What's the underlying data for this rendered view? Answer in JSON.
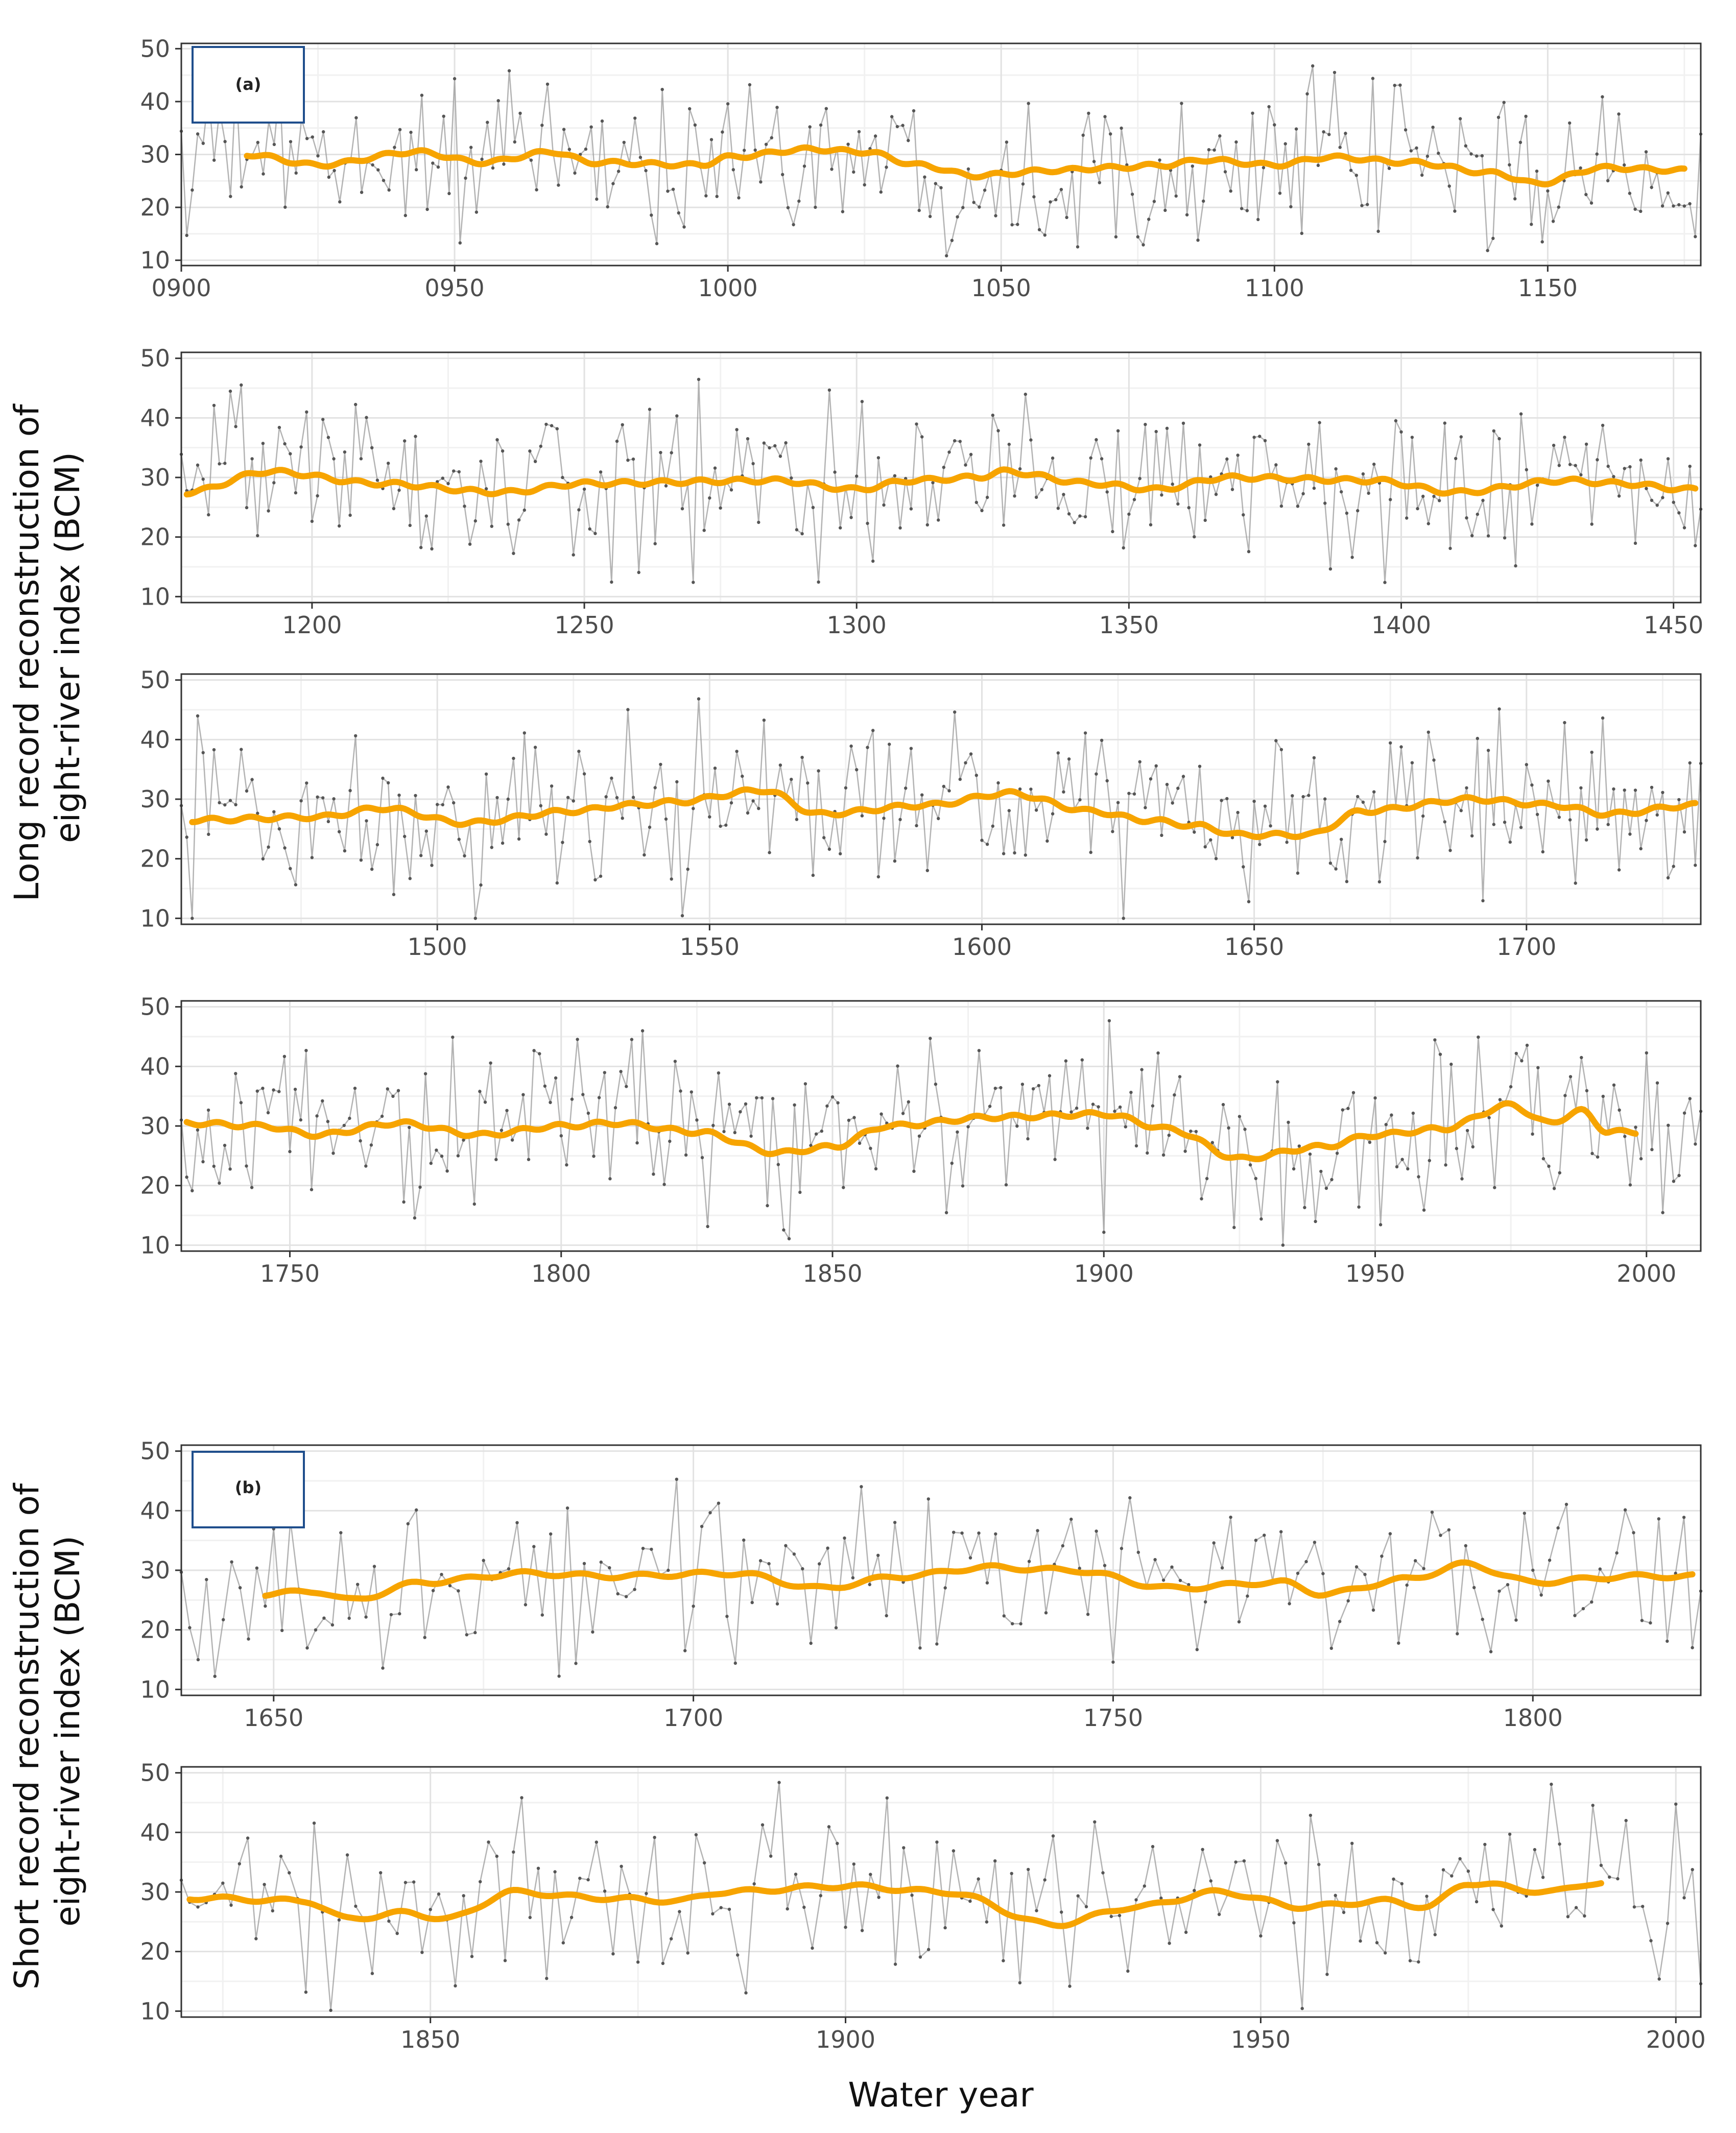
{
  "colors": {
    "raw": "#9a9a9a",
    "smooth": "#f7a400",
    "border": "#333333",
    "grid_major": "#e2e2e2",
    "grid_minor": "#f1f1f1",
    "label_box": "#1f4e8c"
  },
  "labels": {
    "ylabel_a": [
      "Long record reconstruction of",
      "eight-river index (BCM)"
    ],
    "ylabel_b": [
      "Short record reconstruction of",
      "eight-river index (BCM)"
    ],
    "xlabel": "Water year"
  },
  "chart_data": [
    {
      "id": "a1",
      "type": "line",
      "panel_label": "(a)",
      "xlim": [
        900,
        1178
      ],
      "ylim": [
        9,
        51
      ],
      "xticks": [
        900,
        950,
        1000,
        1050,
        1100,
        1150
      ],
      "tick_labels": [
        "0900",
        "0950",
        "1000",
        "1050",
        "1100",
        "1150"
      ],
      "yticks": [
        10,
        20,
        30,
        40,
        50
      ],
      "smooth_range": [
        912,
        1175
      ],
      "smooth_knots": [
        [
          912,
          30
        ],
        [
          925,
          28
        ],
        [
          943,
          30.5
        ],
        [
          955,
          28.5
        ],
        [
          968,
          30.5
        ],
        [
          975,
          28.5
        ],
        [
          995,
          28
        ],
        [
          1000,
          29.5
        ],
        [
          1015,
          31
        ],
        [
          1025,
          30.5
        ],
        [
          1035,
          28
        ],
        [
          1045,
          26
        ],
        [
          1060,
          27
        ],
        [
          1070,
          27.5
        ],
        [
          1080,
          28
        ],
        [
          1087,
          29
        ],
        [
          1100,
          28
        ],
        [
          1110,
          29.5
        ],
        [
          1125,
          28.5
        ],
        [
          1140,
          26.5
        ],
        [
          1148,
          24.5
        ],
        [
          1160,
          27.5
        ],
        [
          1175,
          27
        ]
      ]
    },
    {
      "id": "a2",
      "type": "line",
      "panel_label": "",
      "xlim": [
        1176,
        1455
      ],
      "ylim": [
        9,
        51
      ],
      "xticks": [
        1200,
        1250,
        1300,
        1350,
        1400,
        1450
      ],
      "tick_labels": [
        "1200",
        "1250",
        "1300",
        "1350",
        "1400",
        "1450"
      ],
      "yticks": [
        10,
        20,
        30,
        40,
        50
      ],
      "smooth_range": [
        1177,
        1454
      ],
      "smooth_knots": [
        [
          1177,
          27.5
        ],
        [
          1192,
          31
        ],
        [
          1212,
          29
        ],
        [
          1235,
          27.5
        ],
        [
          1250,
          29
        ],
        [
          1285,
          29.5
        ],
        [
          1300,
          28
        ],
        [
          1310,
          29.5
        ],
        [
          1322,
          30
        ],
        [
          1327,
          31
        ],
        [
          1343,
          29
        ],
        [
          1355,
          28
        ],
        [
          1368,
          30
        ],
        [
          1395,
          29.5
        ],
        [
          1410,
          27.5
        ],
        [
          1430,
          29.5
        ],
        [
          1440,
          29
        ],
        [
          1453,
          28
        ]
      ]
    },
    {
      "id": "a3",
      "type": "line",
      "panel_label": "",
      "xlim": [
        1453,
        1732
      ],
      "ylim": [
        9,
        51
      ],
      "xticks": [
        1500,
        1550,
        1600,
        1650,
        1700
      ],
      "tick_labels": [
        "1500",
        "1550",
        "1600",
        "1650",
        "1700"
      ],
      "yticks": [
        10,
        20,
        30,
        40,
        50
      ],
      "smooth_range": [
        1455,
        1731
      ],
      "smooth_knots": [
        [
          1455,
          26.5
        ],
        [
          1478,
          27
        ],
        [
          1490,
          28.5
        ],
        [
          1505,
          26
        ],
        [
          1525,
          28
        ],
        [
          1535,
          29
        ],
        [
          1543,
          29.5
        ],
        [
          1560,
          31.5
        ],
        [
          1570,
          27.5
        ],
        [
          1590,
          29
        ],
        [
          1605,
          31
        ],
        [
          1620,
          28
        ],
        [
          1630,
          26.5
        ],
        [
          1640,
          25.5
        ],
        [
          1647,
          24
        ],
        [
          1660,
          24
        ],
        [
          1670,
          28
        ],
        [
          1690,
          30
        ],
        [
          1705,
          29
        ],
        [
          1715,
          27.5
        ],
        [
          1731,
          29
        ]
      ]
    },
    {
      "id": "a4",
      "type": "line",
      "panel_label": "",
      "xlim": [
        1730,
        2010
      ],
      "ylim": [
        9,
        51
      ],
      "xticks": [
        1750,
        1800,
        1850,
        1900,
        1950,
        2000
      ],
      "tick_labels": [
        "1750",
        "1800",
        "1850",
        "1900",
        "1950",
        "2000"
      ],
      "yticks": [
        10,
        20,
        30,
        40,
        50
      ],
      "smooth_range": [
        1731,
        1998
      ],
      "smooth_knots": [
        [
          1731,
          30.5
        ],
        [
          1745,
          30
        ],
        [
          1755,
          28.5
        ],
        [
          1770,
          30.5
        ],
        [
          1785,
          28.5
        ],
        [
          1800,
          30
        ],
        [
          1810,
          30.5
        ],
        [
          1825,
          29
        ],
        [
          1840,
          25.5
        ],
        [
          1850,
          26.5
        ],
        [
          1860,
          30
        ],
        [
          1880,
          31.5
        ],
        [
          1900,
          32
        ],
        [
          1912,
          29.5
        ],
        [
          1925,
          24.5
        ],
        [
          1940,
          26.5
        ],
        [
          1950,
          28.5
        ],
        [
          1962,
          29.5
        ],
        [
          1975,
          33.5
        ],
        [
          1982,
          30.5
        ],
        [
          1988,
          32.5
        ],
        [
          1993,
          29
        ],
        [
          1998,
          29
        ]
      ]
    },
    {
      "id": "b1",
      "type": "line",
      "panel_label": "(b)",
      "xlim": [
        1639,
        1820
      ],
      "ylim": [
        9,
        51
      ],
      "xticks": [
        1650,
        1700,
        1750,
        1800
      ],
      "tick_labels": [
        "1650",
        "1700",
        "1750",
        "1800"
      ],
      "yticks": [
        10,
        20,
        30,
        40,
        50
      ],
      "smooth_range": [
        1649,
        1819
      ],
      "smooth_knots": [
        [
          1649,
          26
        ],
        [
          1655,
          26.5
        ],
        [
          1659,
          25
        ],
        [
          1668,
          28
        ],
        [
          1680,
          29.5
        ],
        [
          1690,
          29
        ],
        [
          1705,
          29.5
        ],
        [
          1715,
          27
        ],
        [
          1725,
          29
        ],
        [
          1735,
          30.5
        ],
        [
          1745,
          30
        ],
        [
          1757,
          27
        ],
        [
          1770,
          28
        ],
        [
          1775,
          26
        ],
        [
          1785,
          28.5
        ],
        [
          1792,
          31
        ],
        [
          1800,
          28
        ],
        [
          1812,
          29
        ],
        [
          1819,
          29
        ]
      ]
    },
    {
      "id": "b2",
      "type": "line",
      "panel_label": "",
      "xlim": [
        1820,
        2003
      ],
      "ylim": [
        9,
        51
      ],
      "xticks": [
        1850,
        1900,
        1950,
        2000
      ],
      "tick_labels": [
        "1850",
        "1900",
        "1950",
        "2000"
      ],
      "yticks": [
        10,
        20,
        30,
        40,
        50
      ],
      "smooth_range": [
        1821,
        1991
      ],
      "smooth_knots": [
        [
          1821,
          29
        ],
        [
          1835,
          28.5
        ],
        [
          1840,
          25.5
        ],
        [
          1847,
          26.5
        ],
        [
          1852,
          25.5
        ],
        [
          1860,
          30
        ],
        [
          1870,
          29
        ],
        [
          1880,
          28.5
        ],
        [
          1885,
          30
        ],
        [
          1900,
          31
        ],
        [
          1912,
          30
        ],
        [
          1925,
          24.5
        ],
        [
          1935,
          27.5
        ],
        [
          1945,
          30
        ],
        [
          1955,
          27.5
        ],
        [
          1965,
          28.5
        ],
        [
          1970,
          27.5
        ],
        [
          1975,
          31.5
        ],
        [
          1985,
          30
        ],
        [
          1990,
          31.5
        ]
      ]
    }
  ]
}
